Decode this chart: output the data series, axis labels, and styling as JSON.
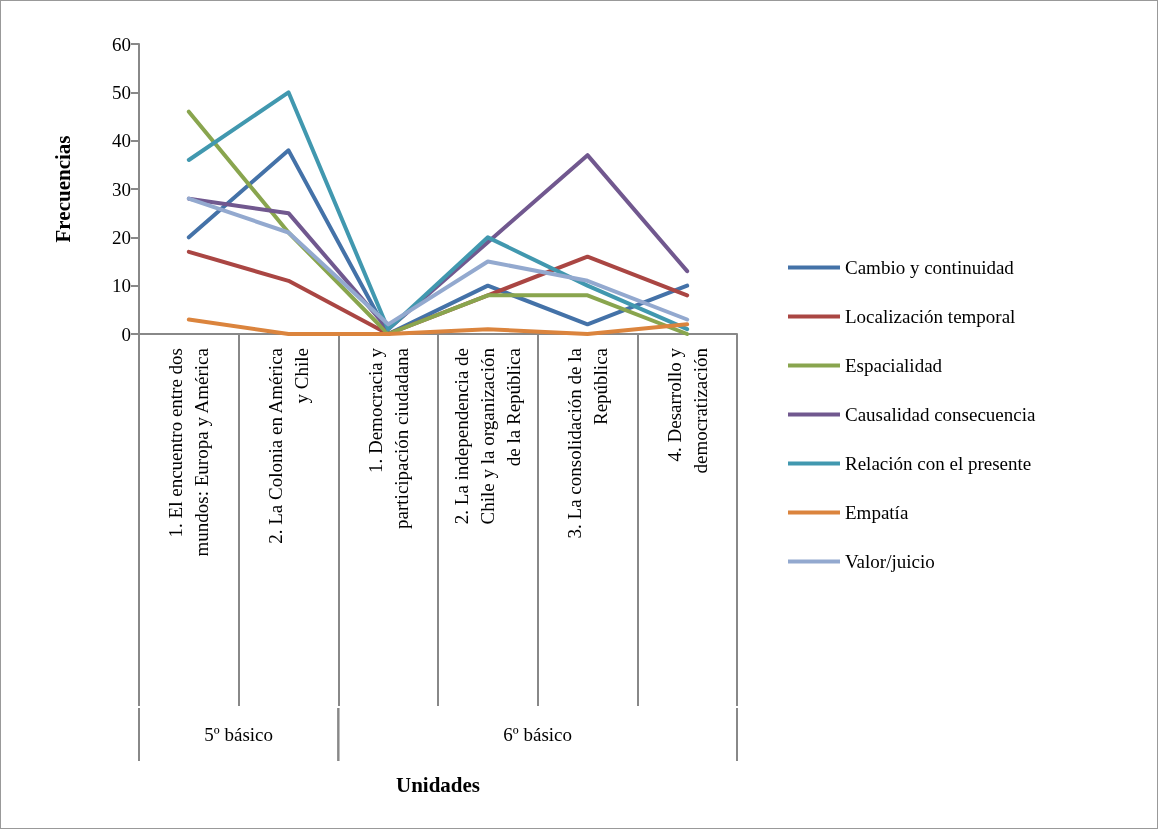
{
  "chart_data": {
    "type": "line",
    "ylabel": "Frecuencias",
    "categories": [
      "1. El encuentro entre dos mundos: Europa y América",
      "2. La Colonia en América y Chile",
      "1. Democracia y participación ciudadana",
      "2. La independencia de Chile y la organización de la República",
      "3. La consolidación de la República",
      "4. Desarrollo y democratización"
    ],
    "series": [
      {
        "name": "Cambio y continuidad",
        "color": "#4472a8",
        "values": [
          20,
          38,
          0,
          10,
          2,
          10
        ]
      },
      {
        "name": "Localización temporal",
        "color": "#aa4643",
        "values": [
          17,
          11,
          0,
          8,
          16,
          8
        ]
      },
      {
        "name": "Espacialidad",
        "color": "#89a54e",
        "values": [
          46,
          21,
          0,
          8,
          8,
          0
        ]
      },
      {
        "name": "Causalidad consecuencia",
        "color": "#71588f",
        "values": [
          28,
          25,
          1,
          19,
          37,
          13
        ]
      },
      {
        "name": "Relación con el presente",
        "color": "#4198af",
        "values": [
          36,
          50,
          1,
          20,
          10,
          1
        ]
      },
      {
        "name": "Empatía",
        "color": "#db843d",
        "values": [
          3,
          0,
          0,
          1,
          0,
          2
        ]
      },
      {
        "name": "Valor/juicio",
        "color": "#93a9cf",
        "values": [
          28,
          21,
          2,
          15,
          11,
          3
        ]
      }
    ],
    "ylim": [
      0,
      60
    ],
    "yticks": [
      0,
      10,
      20,
      30,
      40,
      50,
      60
    ],
    "grid": false,
    "legend": "right",
    "marker": "none",
    "line_style": "solid",
    "annotations": [
      "5º básico",
      "6º básico",
      "Unidades"
    ]
  }
}
